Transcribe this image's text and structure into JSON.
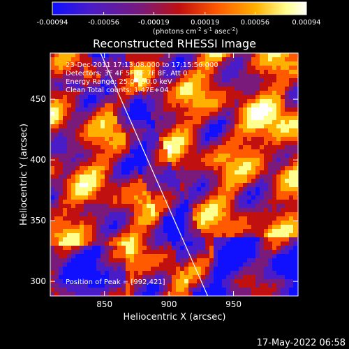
{
  "colorbar": {
    "ticks": [
      "-0.00094",
      "-0.00056",
      "-0.00019",
      "0.00019",
      "0.00056",
      "0.00094"
    ],
    "tick_values": [
      -0.00094,
      -0.00056,
      -0.00019,
      0.00019,
      0.00056,
      0.00094
    ],
    "range": [
      -0.00094,
      0.00094
    ],
    "colors": [
      "#1010ff",
      "#4a1cc8",
      "#7a1a7a",
      "#c01010",
      "#ff5a00",
      "#ffb000",
      "#ffff90",
      "#ffffff"
    ]
  },
  "units_label": {
    "pre": "(photons cm",
    "sup1": "-2",
    "mid1": " s",
    "sup2": "-1",
    "mid2": " asec",
    "sup3": "-2",
    "post": ")"
  },
  "chart_data": {
    "type": "heatmap",
    "title": "Reconstructed RHESSI Image",
    "xlabel": "Heliocentric X (arcsec)",
    "ylabel": "Heliocentric Y (arcsec)",
    "xlim": [
      808,
      1000
    ],
    "ylim": [
      288,
      488
    ],
    "xticks": [
      850,
      900,
      950
    ],
    "yticks": [
      300,
      350,
      400,
      450
    ],
    "peak_position": [
      992,
      421
    ],
    "limb_line": [
      [
        847,
        488
      ],
      [
        930,
        288
      ]
    ]
  },
  "info": {
    "line1": "23-Dec-2011 17:13:08.000 to 17:15:56.000",
    "line2": "Detectors: 3F 4F 5F 6F 7F 8F, Att 0",
    "line3": "Energy Range: 25.0 - 50.0 keV",
    "line4": "Clean    Total counts: 1.47E+04",
    "peak": "Position of Peak = [992,421]"
  },
  "footer_date": "17-May-2022 06:58"
}
